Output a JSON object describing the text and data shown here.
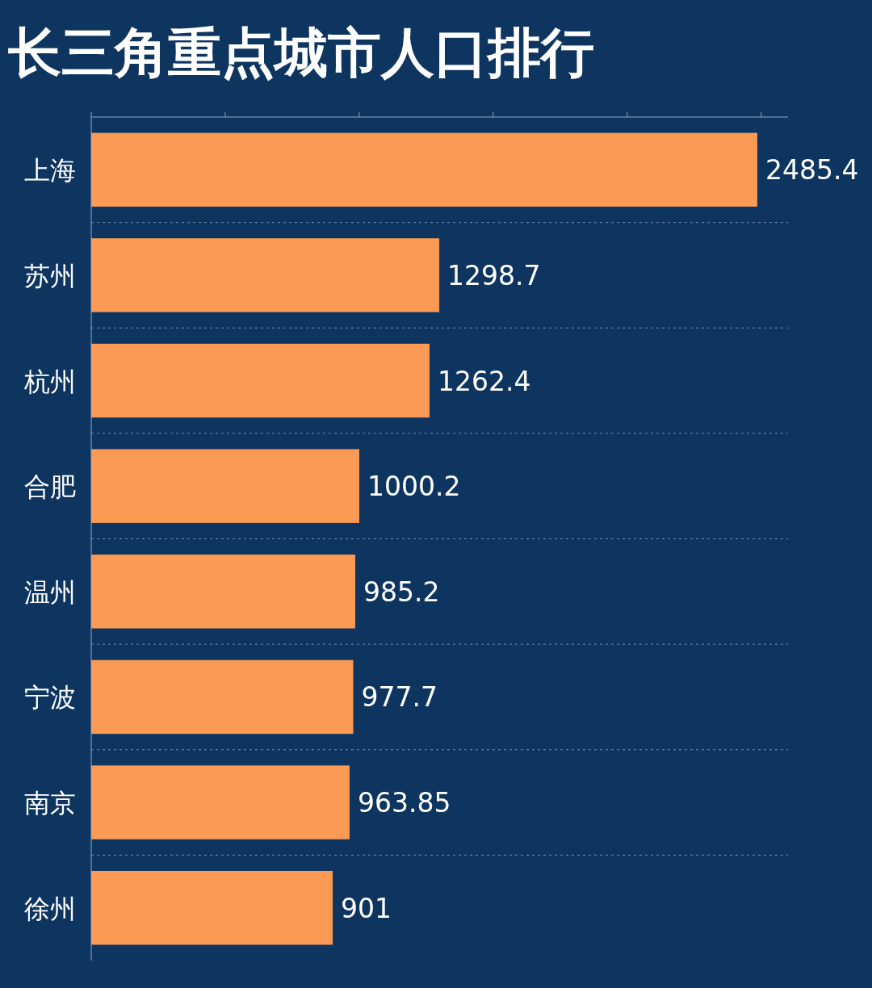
{
  "chart_data": {
    "type": "bar",
    "title": "长三角重点城市人口排行",
    "orientation": "horizontal",
    "categories": [
      "上海",
      "苏州",
      "杭州",
      "合肥",
      "温州",
      "宁波",
      "南京",
      "徐州"
    ],
    "values": [
      2485.4,
      1298.7,
      1262.4,
      1000.2,
      985.2,
      977.7,
      963.85,
      901
    ],
    "color": "#fa9a55",
    "xlim": [
      0,
      2600
    ],
    "xticks": [
      {
        "value": 0,
        "label": null
      },
      {
        "value": 500,
        "label": null
      },
      {
        "value": 1000,
        "label": null
      },
      {
        "value": 1500,
        "label": null
      },
      {
        "value": 2000,
        "label": null
      },
      {
        "value": 2500,
        "label": null
      }
    ],
    "tick_labels": "y",
    "data_labels": true,
    "grid": "y"
  }
}
